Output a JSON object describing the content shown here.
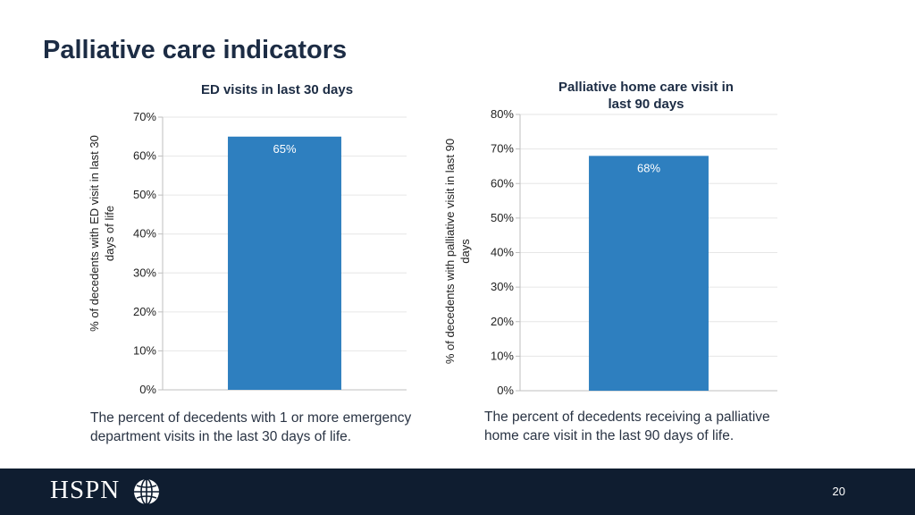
{
  "page": {
    "title": "Palliative care indicators",
    "page_number": "20"
  },
  "logo": {
    "text": "HSPN",
    "icon": "globe-icon"
  },
  "colors": {
    "bar": "#2e7fbf",
    "grid": "#e6e6e6",
    "axis": "#bfbfbf",
    "footer": "#0f1d30"
  },
  "captions": {
    "left": [
      "The percent of decedents with 1 or more emergency",
      "department visits in the last 30 days of life."
    ],
    "right": [
      "The percent of decedents receiving a palliative",
      "home care visit in the last 90 days of life."
    ]
  },
  "chart_data": [
    {
      "type": "bar",
      "title": "ED visits in last 30 days",
      "ylabel_lines": [
        "% of decedents with ED visit in last 30",
        "days of life"
      ],
      "categories": [
        ""
      ],
      "values": [
        65
      ],
      "data_labels": [
        "65%"
      ],
      "ylim": [
        0,
        70
      ],
      "yticks": [
        0,
        10,
        20,
        30,
        40,
        50,
        60,
        70
      ],
      "ytick_labels": [
        "0%",
        "10%",
        "20%",
        "30%",
        "40%",
        "50%",
        "60%",
        "70%"
      ],
      "grid": true
    },
    {
      "type": "bar",
      "title_lines": [
        "Palliative home care visit in",
        "last 90 days"
      ],
      "ylabel_lines": [
        "% of decedents with palliative visit in last 90",
        "days"
      ],
      "categories": [
        ""
      ],
      "values": [
        68
      ],
      "data_labels": [
        "68%"
      ],
      "ylim": [
        0,
        80
      ],
      "yticks": [
        0,
        10,
        20,
        30,
        40,
        50,
        60,
        70,
        80
      ],
      "ytick_labels": [
        "0%",
        "10%",
        "20%",
        "30%",
        "40%",
        "50%",
        "60%",
        "70%",
        "80%"
      ],
      "grid": true
    }
  ]
}
